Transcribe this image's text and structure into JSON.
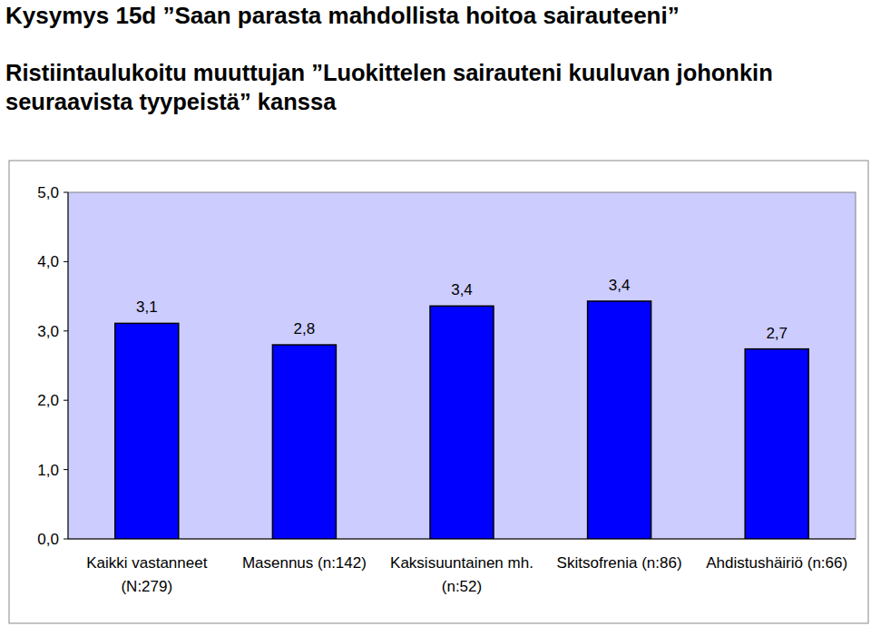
{
  "chart_data": {
    "type": "bar",
    "title": "Kysymys 15d ”Saan parasta mahdollista hoitoa sairauteeni”",
    "subtitle": "Ristiintaulukoitu muuttujan ”Luokittelen sairauteni kuuluvan johonkin seuraavista tyypeistä” kanssa",
    "categories": [
      "Kaikki vastanneet (N:279)",
      "Masennus (n:142)",
      "Kaksisuuntainen mh. (n:52)",
      "Skitsofrenia (n:86)",
      "Ahdistushäiriö (n:66)"
    ],
    "values": [
      3.11,
      2.8,
      3.36,
      3.43,
      2.74
    ],
    "value_labels": [
      "3,1",
      "2,8",
      "3,4",
      "3,4",
      "2,7"
    ],
    "color": "#0000ff",
    "data_labels": true,
    "grid": false,
    "ylim": [
      0,
      5
    ],
    "yticks": [
      {
        "value": 0,
        "label": "0,0"
      },
      {
        "value": 1,
        "label": "1,0"
      },
      {
        "value": 2,
        "label": "2,0"
      },
      {
        "value": 3,
        "label": "3,0"
      },
      {
        "value": 4,
        "label": "4,0"
      },
      {
        "value": 5,
        "label": "5,0"
      }
    ]
  }
}
